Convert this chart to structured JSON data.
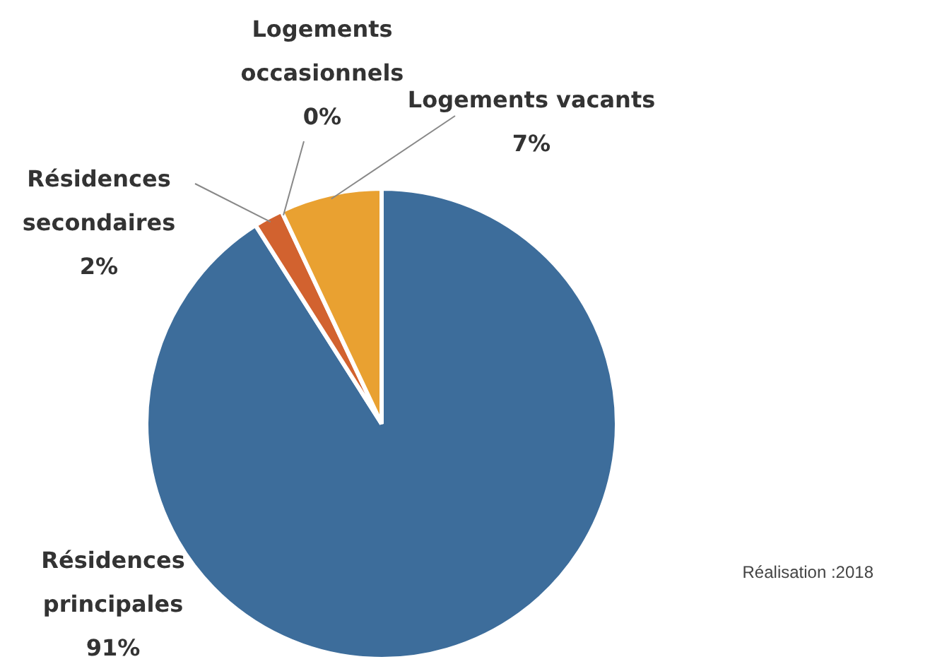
{
  "chart_data": {
    "type": "pie",
    "categories": [
      "Résidences principales",
      "Résidences secondaires",
      "Logements occasionnels",
      "Logements vacants"
    ],
    "values": [
      91,
      2,
      0,
      7
    ],
    "colors": [
      "#3d6d9b",
      "#d2622f",
      "#e9a131",
      "#e9a131"
    ],
    "value_labels": [
      "91%",
      "2%",
      "0%",
      "7%"
    ],
    "annotations": [
      "Réalisation :2018"
    ]
  }
}
